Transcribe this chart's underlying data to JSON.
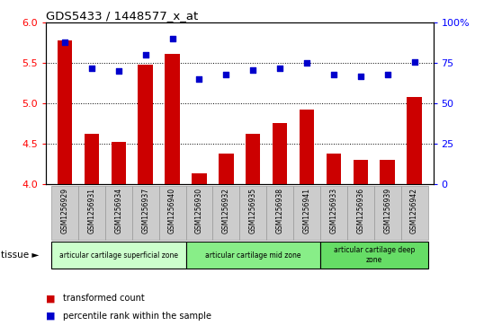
{
  "title": "GDS5433 / 1448577_x_at",
  "samples": [
    "GSM1256929",
    "GSM1256931",
    "GSM1256934",
    "GSM1256937",
    "GSM1256940",
    "GSM1256930",
    "GSM1256932",
    "GSM1256935",
    "GSM1256938",
    "GSM1256941",
    "GSM1256933",
    "GSM1256936",
    "GSM1256939",
    "GSM1256942"
  ],
  "bar_values": [
    5.78,
    4.62,
    4.52,
    5.48,
    5.62,
    4.14,
    4.38,
    4.62,
    4.76,
    4.92,
    4.38,
    4.3,
    4.3,
    5.08
  ],
  "scatter_values": [
    88,
    72,
    70,
    80,
    90,
    65,
    68,
    71,
    72,
    75,
    68,
    67,
    68,
    76
  ],
  "bar_bottom": 4.0,
  "ylim_left": [
    4.0,
    6.0
  ],
  "ylim_right": [
    0,
    100
  ],
  "yticks_left": [
    4.0,
    4.5,
    5.0,
    5.5,
    6.0
  ],
  "yticks_right": [
    0,
    25,
    50,
    75,
    100
  ],
  "ytick_labels_right": [
    "0",
    "25",
    "50",
    "75",
    "100%"
  ],
  "bar_color": "#cc0000",
  "scatter_color": "#0000cc",
  "groups": [
    {
      "label": "articular cartilage superficial zone",
      "start": 0,
      "end": 4,
      "color": "#ccffcc"
    },
    {
      "label": "articular cartilage mid zone",
      "start": 5,
      "end": 9,
      "color": "#88ee88"
    },
    {
      "label": "articular cartilage deep\nzone",
      "start": 10,
      "end": 13,
      "color": "#66dd66"
    }
  ],
  "tissue_label": "tissue",
  "legend_bar_label": "transformed count",
  "legend_scatter_label": "percentile rank within the sample",
  "xtick_bg": "#d0d0d0",
  "xtick_border": "#888888"
}
